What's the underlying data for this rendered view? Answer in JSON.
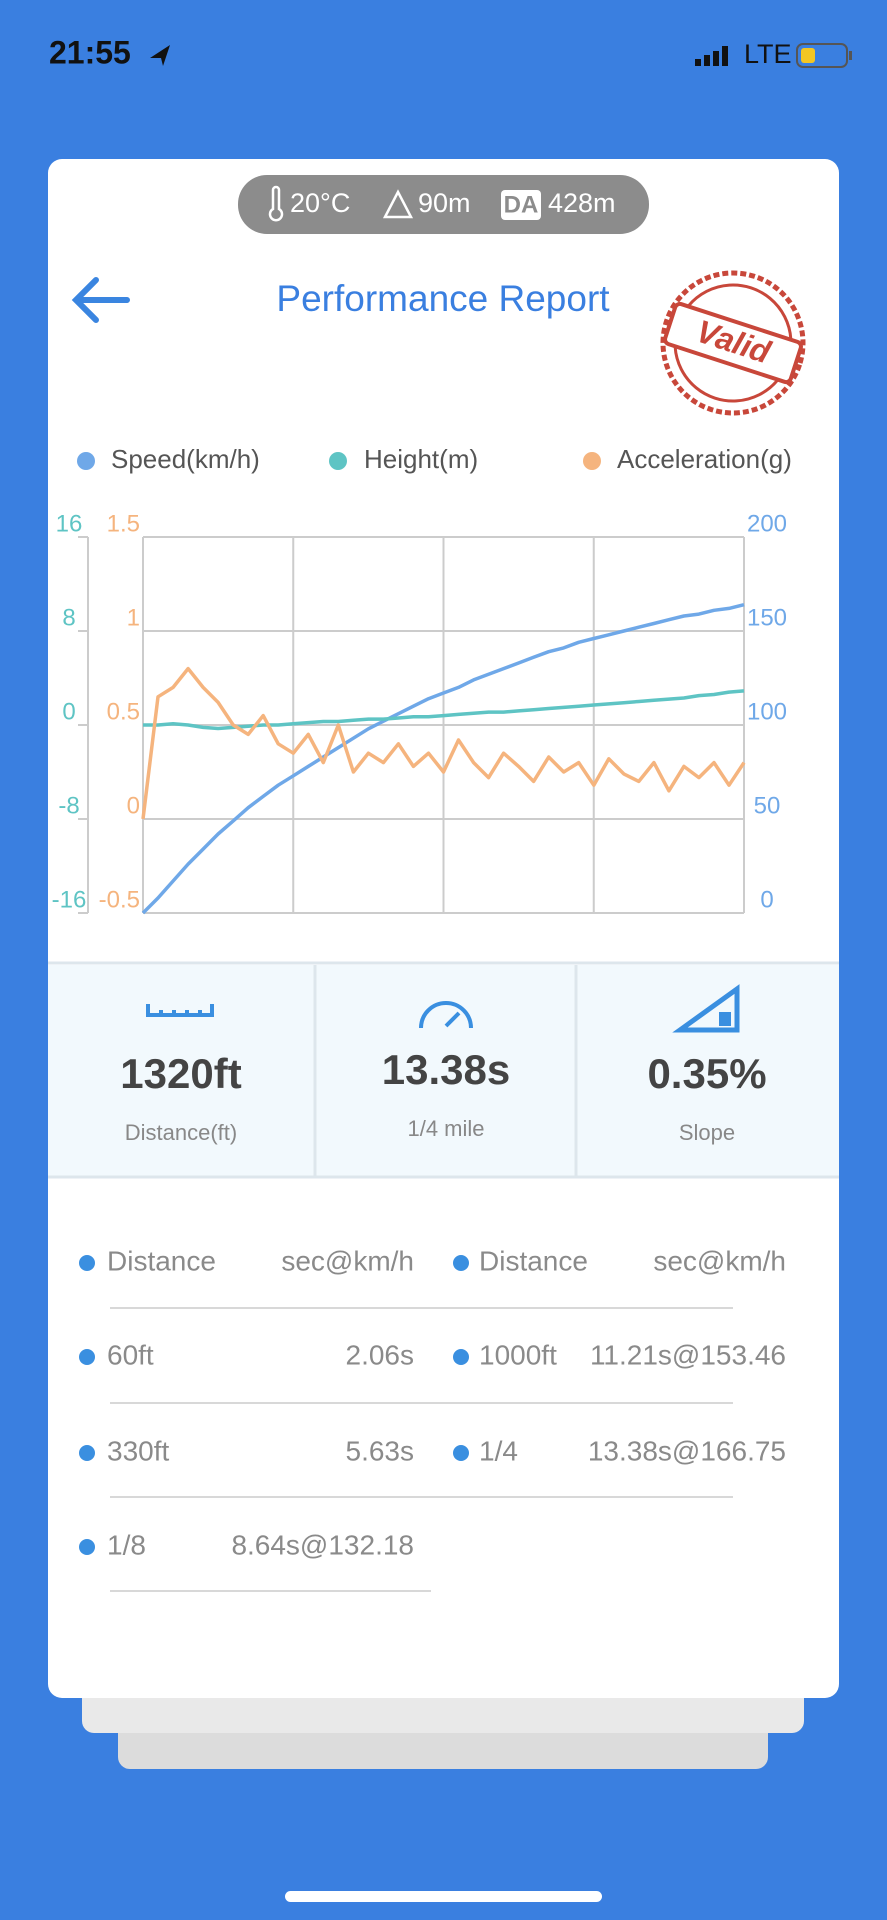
{
  "status_bar": {
    "time": "21:55",
    "network": "LTE"
  },
  "conditions": {
    "temperature": "20°C",
    "altitude": "90m",
    "da_label": "DA",
    "density_altitude": "428m"
  },
  "header": {
    "title": "Performance Report",
    "stamp": "Valid"
  },
  "chart_data": {
    "type": "line",
    "grid": true,
    "ylim": [
      -0.5,
      1.5
    ],
    "yticks": [
      -0.5,
      0,
      0.5,
      1,
      1.5
    ],
    "y2lim": [
      0,
      200
    ],
    "y2ticks": [
      0,
      50,
      100,
      150,
      200
    ],
    "y3lim": [
      -16,
      16
    ],
    "y3ticks": [
      -16,
      -8,
      0,
      8,
      16
    ],
    "series": [
      {
        "name": "Speed(km/h)",
        "color": "#6fa8e8",
        "axis": "y2",
        "values": [
          0,
          8,
          17,
          26,
          34,
          42,
          49,
          56,
          62,
          68,
          73,
          78,
          83,
          88,
          93,
          98,
          102,
          106,
          110,
          114,
          117,
          120,
          124,
          127,
          130,
          133,
          136,
          139,
          141,
          144,
          146,
          148,
          150,
          152,
          154,
          156,
          158,
          159,
          161,
          162,
          164
        ]
      },
      {
        "name": "Height(m)",
        "color": "#5ec4c4",
        "axis": "y3",
        "values": [
          0,
          0,
          0.1,
          0,
          -0.2,
          -0.3,
          -0.2,
          -0.1,
          0,
          0,
          0.1,
          0.2,
          0.3,
          0.3,
          0.4,
          0.5,
          0.5,
          0.6,
          0.7,
          0.7,
          0.8,
          0.9,
          1,
          1.1,
          1.1,
          1.2,
          1.3,
          1.4,
          1.5,
          1.6,
          1.7,
          1.8,
          1.9,
          2,
          2.1,
          2.2,
          2.3,
          2.5,
          2.6,
          2.8,
          2.9
        ]
      },
      {
        "name": "Acceleration(g)",
        "color": "#f5b47e",
        "axis": "y",
        "values": [
          0,
          0.65,
          0.7,
          0.8,
          0.7,
          0.62,
          0.5,
          0.45,
          0.55,
          0.4,
          0.35,
          0.45,
          0.3,
          0.5,
          0.25,
          0.35,
          0.3,
          0.4,
          0.28,
          0.35,
          0.25,
          0.42,
          0.3,
          0.22,
          0.35,
          0.28,
          0.2,
          0.33,
          0.25,
          0.3,
          0.18,
          0.32,
          0.24,
          0.2,
          0.3,
          0.15,
          0.28,
          0.22,
          0.3,
          0.18,
          0.3
        ]
      }
    ]
  },
  "summary": [
    {
      "value": "1320ft",
      "label": "Distance(ft)"
    },
    {
      "value": "13.38s",
      "label": "1/4 mile"
    },
    {
      "value": "0.35%",
      "label": "Slope"
    }
  ],
  "table": {
    "rows": [
      [
        "Distance",
        "sec@km/h",
        "Distance",
        "sec@km/h"
      ],
      [
        "60ft",
        "2.06s",
        "1000ft",
        "11.21s@153.46"
      ],
      [
        "330ft",
        "5.63s",
        "1/4",
        "13.38s@166.75"
      ],
      [
        "1/8",
        "8.64s@132.18"
      ]
    ]
  }
}
